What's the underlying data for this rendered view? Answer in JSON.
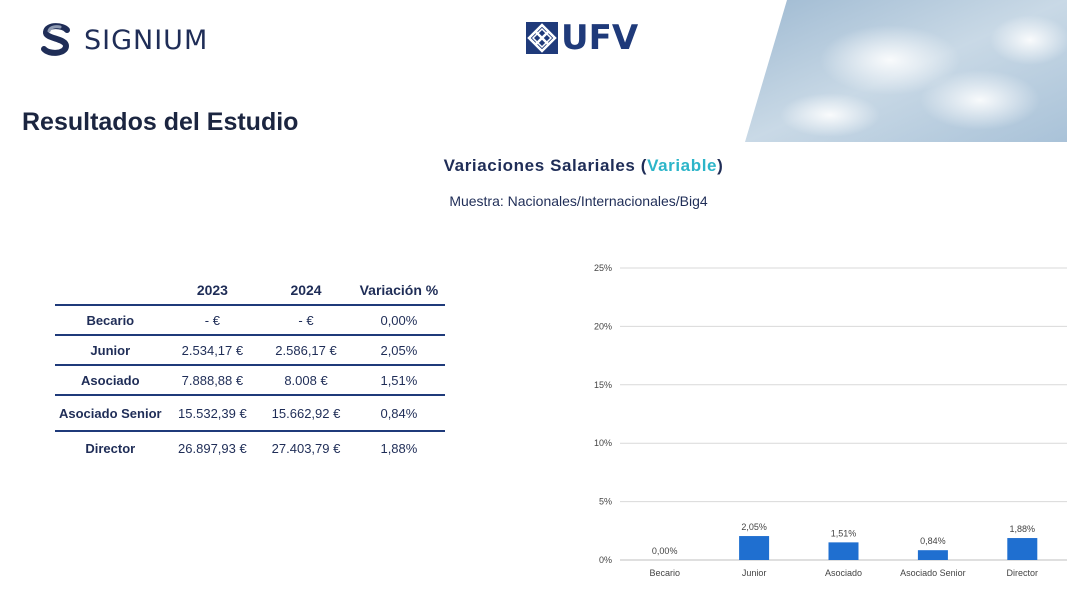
{
  "brands": {
    "signium": "SIGNIUM",
    "ufv": "UFV"
  },
  "page_title": "Resultados del Estudio",
  "subtitle": {
    "prefix": "Variaciones Salariales (",
    "accent": "Variable",
    "suffix": ")"
  },
  "sample": "Muestra: Nacionales/Internacionales/Big4",
  "table": {
    "headers": [
      "",
      "2023",
      "2024",
      "Variación %"
    ],
    "rows": [
      {
        "label": "Becario",
        "y2023": "- €",
        "y2024": "- €",
        "variation": "0,00%"
      },
      {
        "label": "Junior",
        "y2023": "2.534,17 €",
        "y2024": "2.586,17 €",
        "variation": "2,05%"
      },
      {
        "label": "Asociado",
        "y2023": "7.888,88 €",
        "y2024": "8.008 €",
        "variation": "1,51%"
      },
      {
        "label": "Asociado Senior",
        "y2023": "15.532,39 €",
        "y2024": "15.662,92 €",
        "variation": "0,84%"
      },
      {
        "label": "Director",
        "y2023": "26.897,93 €",
        "y2024": "27.403,79 €",
        "variation": "1,88%"
      }
    ]
  },
  "chart_data": {
    "type": "bar",
    "categories": [
      "Becario",
      "Junior",
      "Asociado",
      "Asociado Senior",
      "Director"
    ],
    "values": [
      0.0,
      2.05,
      1.51,
      0.84,
      1.88
    ],
    "data_labels": [
      "0,00%",
      "2,05%",
      "1,51%",
      "0,84%",
      "1,88%"
    ],
    "yticks": [
      "0%",
      "5%",
      "10%",
      "15%",
      "20%",
      "25%"
    ],
    "ylim": [
      0,
      25
    ],
    "grid": true,
    "bar_color": "#1f6fd0",
    "title": "",
    "xlabel": "",
    "ylabel": ""
  }
}
